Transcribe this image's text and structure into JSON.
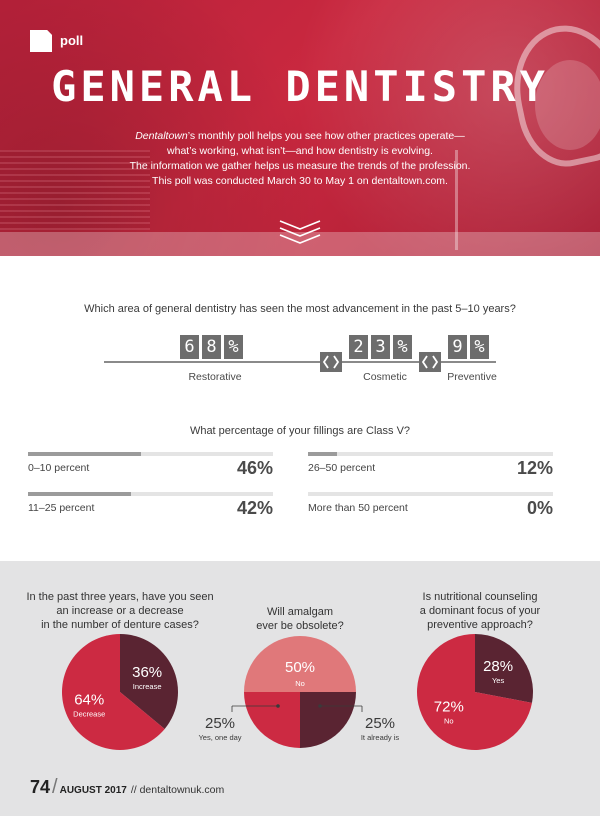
{
  "header": {
    "section_label": "poll",
    "title": "GENERAL DENTISTRY",
    "intro_brand": "Dentaltown",
    "intro_line1": "’s monthly poll helps you see how other practices operate—",
    "intro_line2": "what’s working, what isn’t—and how dentistry is evolving.",
    "intro_line3": "The information we gather helps us measure the trends of the profession.",
    "intro_line4": "This poll was conducted March 30 to May 1 on dentaltown.com."
  },
  "q1": {
    "question": "Which area of general dentistry has seen the most advancement in the past 5–10 years?",
    "items": [
      {
        "label": "Restorative",
        "digits": [
          "6",
          "8",
          "%"
        ],
        "value": 68
      },
      {
        "label": "Cosmetic",
        "digits": [
          "2",
          "3",
          "%"
        ],
        "value": 23
      },
      {
        "label": "Preventive",
        "digits": [
          "9",
          "%"
        ],
        "value": 9
      }
    ]
  },
  "q2": {
    "question": "What percentage of your fillings are Class V?",
    "items": [
      {
        "label": "0–10 percent",
        "value_text": "46%",
        "value": 46
      },
      {
        "label": "11–25 percent",
        "value_text": "42%",
        "value": 42
      },
      {
        "label": "26–50 percent",
        "value_text": "12%",
        "value": 12
      },
      {
        "label": "More than 50 percent",
        "value_text": "0%",
        "value": 0
      }
    ]
  },
  "pies": [
    {
      "question_lines": [
        "In the past three years, have you seen",
        "an increase or a decrease",
        "in the number of denture cases?"
      ],
      "slices": [
        {
          "label": "Increase",
          "value_text": "36%",
          "value": 36,
          "color": "#5a2432"
        },
        {
          "label": "Decrease",
          "value_text": "64%",
          "value": 64,
          "color": "#cc2a42"
        }
      ]
    },
    {
      "question_lines": [
        "Will amalgam",
        "ever be obsolete?"
      ],
      "slices": [
        {
          "label": "No",
          "value_text": "50%",
          "value": 50,
          "color": "#e0787a"
        },
        {
          "label": "It already is",
          "value_text": "25%",
          "value": 25,
          "color": "#5a2432"
        },
        {
          "label": "Yes, one day",
          "value_text": "25%",
          "value": 25,
          "color": "#cc2a42"
        }
      ]
    },
    {
      "question_lines": [
        "Is nutritional counseling",
        "a dominant focus of your",
        "preventive approach?"
      ],
      "slices": [
        {
          "label": "Yes",
          "value_text": "28%",
          "value": 28,
          "color": "#5a2432"
        },
        {
          "label": "No",
          "value_text": "72%",
          "value": 72,
          "color": "#cc2a42"
        }
      ]
    }
  ],
  "footer": {
    "page_number": "74",
    "month": "AUGUST 2017",
    "site": "// dentaltownuk.com"
  }
}
